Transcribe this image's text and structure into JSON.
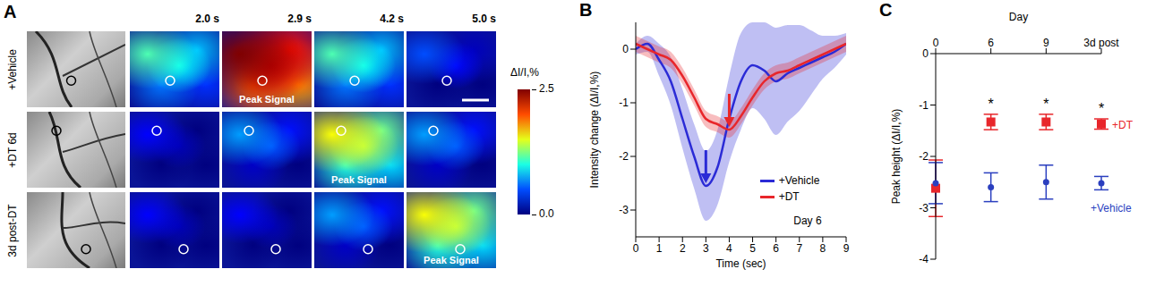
{
  "image_panel": {
    "title": "A",
    "rows": [
      "+Vehicle",
      "+DT 6d",
      "3d post-DT"
    ],
    "times": [
      "2.0 s",
      "2.9 s",
      "4.2 s",
      "5.0 s"
    ],
    "peak_label": "Peak Signal",
    "peaks": [
      "2.9 s",
      "4.2 s",
      "5.0 s"
    ],
    "colorbar": {
      "label": "ΔI/I,%",
      "range": [
        0,
        2.5
      ],
      "ticks": [
        {
          "value": 0,
          "label": "0.0"
        },
        2.5
      ]
    }
  },
  "chart_data": [
    {
      "title": "B",
      "type": "line",
      "x_label": "Time (sec)",
      "y_label": "Intensity change (ΔI/I,%)",
      "annotation": "Day 6",
      "legend": "right",
      "x": [
        0,
        0.5,
        1,
        1.5,
        2,
        2.5,
        3,
        3.5,
        4,
        4.5,
        5,
        5.5,
        6,
        6.5,
        7,
        7.5,
        8,
        8.5,
        9
      ],
      "xlim": [
        0,
        9
      ],
      "xticks": [
        0,
        1,
        2,
        3,
        4,
        5,
        6,
        7,
        8,
        9
      ],
      "ylim": [
        -3.5,
        0.5
      ],
      "yticks": [
        -3,
        -2,
        -1,
        0
      ],
      "series": [
        {
          "name": "+Vehicle",
          "color": "#2b2bd6",
          "values": [
            0,
            0.1,
            -0.2,
            -0.6,
            -1.3,
            -2.0,
            -2.55,
            -2.2,
            -1.3,
            -0.6,
            -0.3,
            -0.4,
            -0.6,
            -0.45,
            -0.35,
            -0.25,
            -0.15,
            -0.05,
            0.1
          ],
          "error": [
            0.1,
            0.15,
            0.3,
            0.45,
            0.55,
            0.6,
            0.65,
            0.7,
            0.8,
            0.9,
            0.8,
            0.9,
            1.0,
            0.9,
            0.8,
            0.6,
            0.4,
            0.3,
            0.2
          ]
        },
        {
          "name": "+DT",
          "color": "#e8262b",
          "values": [
            0.1,
            0,
            -0.1,
            -0.2,
            -0.5,
            -0.9,
            -1.3,
            -1.4,
            -1.5,
            -1.25,
            -0.9,
            -0.6,
            -0.45,
            -0.4,
            -0.3,
            -0.2,
            -0.1,
            0,
            0.1
          ],
          "error": [
            0.15,
            0.15,
            0.15,
            0.15,
            0.15,
            0.15,
            0.15,
            0.15,
            0.15,
            0.15,
            0.15,
            0.15,
            0.15,
            0.15,
            0.15,
            0.15,
            0.15,
            0.15,
            0.15
          ]
        }
      ]
    },
    {
      "title": "C",
      "type": "scatter",
      "x_label": "Day",
      "y_label": "Peak height (ΔI/I,%)",
      "categories": [
        "0",
        "6",
        "9",
        "3d post"
      ],
      "ylim": [
        -4,
        0
      ],
      "yticks": [
        -4,
        -3,
        -2,
        -1,
        0
      ],
      "series": [
        {
          "name": "+DT",
          "color": "#e8262b",
          "marker": "square",
          "values": [
            -2.62,
            -1.33,
            -1.33,
            -1.37
          ],
          "error": [
            0.55,
            0.15,
            0.15,
            0.1
          ],
          "significance": [
            null,
            "*",
            "*",
            "*"
          ]
        },
        {
          "name": "+Vehicle",
          "color": "#2b3fbf",
          "marker": "circle",
          "values": [
            -2.52,
            -2.6,
            -2.5,
            -2.52
          ],
          "error": [
            0.4,
            0.28,
            0.33,
            0.13
          ]
        }
      ]
    }
  ]
}
